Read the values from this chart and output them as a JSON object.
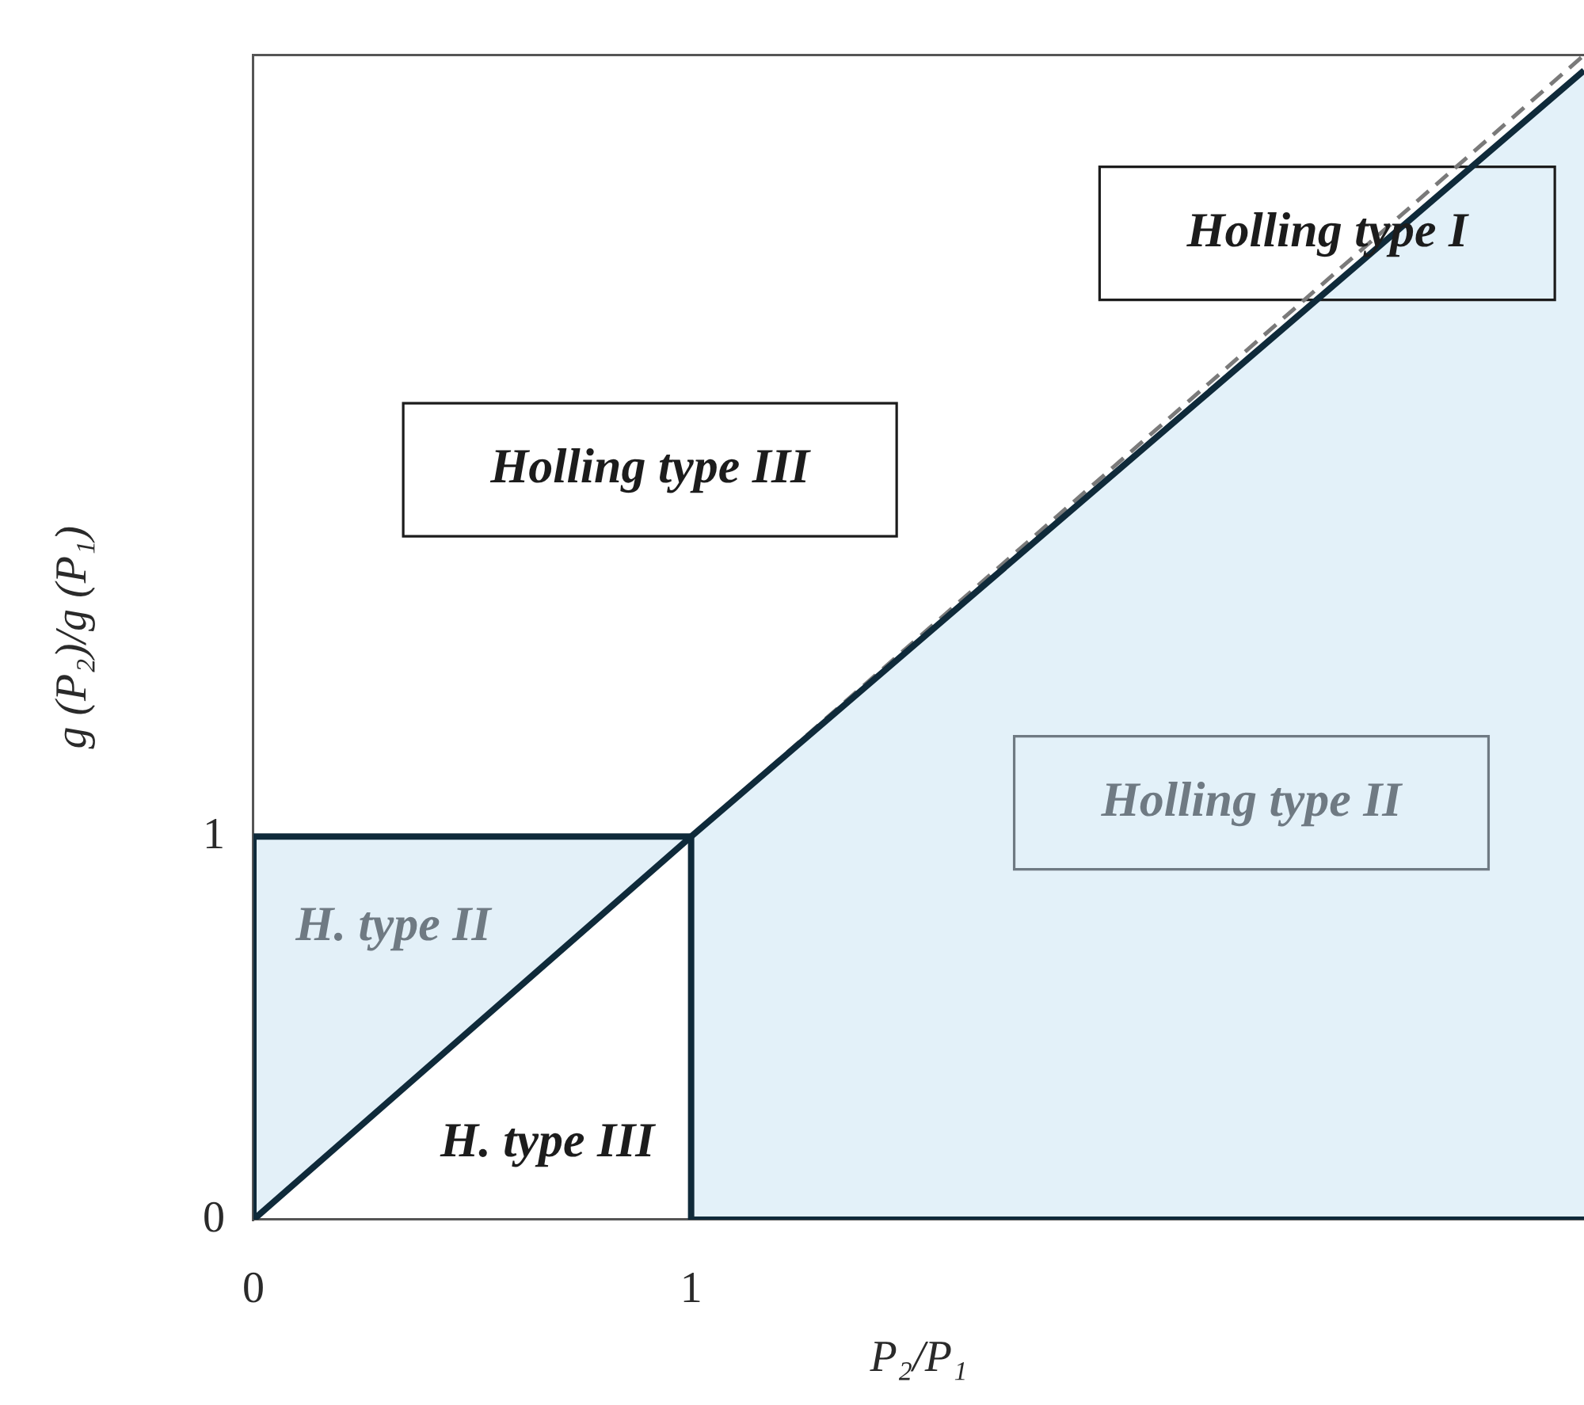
{
  "chart_data": {
    "type": "area",
    "xlabel": "P₂/P₁",
    "ylabel": "g (P₂)/g (P₁)",
    "xlim": [
      0,
      3.04
    ],
    "ylim": [
      0,
      3.04
    ],
    "xticks": [
      0,
      1
    ],
    "yticks": [
      0,
      1
    ],
    "series": [
      {
        "type": "area",
        "color": "#e3f1f9",
        "x": [
          1,
          3.04
        ],
        "values": [
          1,
          3.0
        ]
      },
      {
        "type": "line",
        "color": "#7a7a7a",
        "line_style": "dashed",
        "x": [
          0,
          3.04
        ],
        "values": [
          0,
          3.04
        ]
      },
      {
        "type": "line",
        "color": "#0f2a3a",
        "x": [
          0,
          1,
          3.04
        ],
        "values": [
          0,
          1,
          3.0
        ],
        "lower": [
          0,
          1,
          null
        ],
        "upper": [
          1,
          1,
          null
        ]
      },
      {
        "type": "line",
        "color": "#0f2a3a",
        "x": [
          0,
          0,
          1,
          1,
          3.04
        ],
        "values": [
          0,
          1,
          1,
          0,
          0
        ]
      }
    ],
    "annotations": [
      "Holling type I",
      "Holling type III",
      "Holling type II",
      "H. type II",
      "H. type III"
    ]
  }
}
